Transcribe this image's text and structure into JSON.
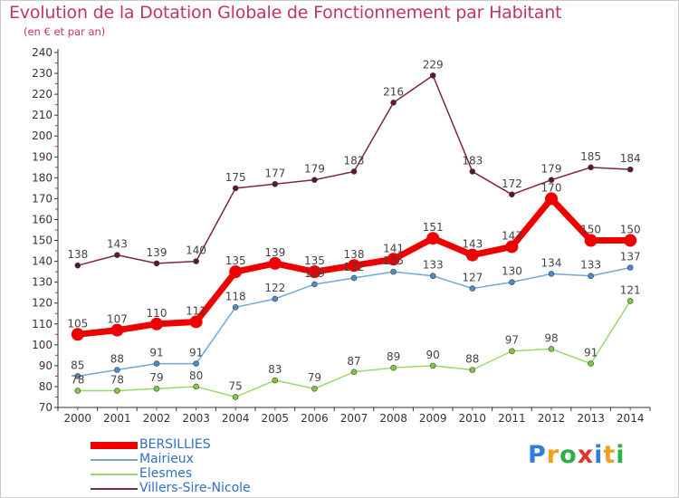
{
  "title": "Evolution de la Dotation Globale de Fonctionnement par Habitant",
  "subtitle": "(en € et par an)",
  "logo": {
    "text": "Proxiti",
    "letters": [
      "P",
      "r",
      "o",
      "x",
      "i",
      "t",
      "i"
    ],
    "colors": [
      "#2f7fd8",
      "#f0a020",
      "#2fae4a",
      "#e0362f",
      "#2f7fd8",
      "#f0a020",
      "#2fae4a"
    ]
  },
  "chart_data": {
    "type": "line",
    "title": "Evolution de la Dotation Globale de Fonctionnement par Habitant",
    "subtitle": "(en € et par an)",
    "categories": [
      "2000",
      "2001",
      "2002",
      "2003",
      "2004",
      "2005",
      "2006",
      "2007",
      "2008",
      "2009",
      "2010",
      "2011",
      "2012",
      "2013",
      "2014"
    ],
    "ylim": [
      70,
      240
    ],
    "yticks": [
      70,
      80,
      90,
      100,
      110,
      120,
      130,
      140,
      150,
      160,
      170,
      180,
      190,
      200,
      210,
      220,
      230,
      240
    ],
    "yticklabels": [
      "70",
      "80",
      "90",
      "100",
      "110",
      "120",
      "130",
      "140",
      "150",
      "160",
      "170",
      "180",
      "190",
      "200",
      "210",
      "220",
      "230",
      "240"
    ],
    "legend_position": "bottom-left",
    "grid": false,
    "series": [
      {
        "name": "Villers-Sire-Nicole",
        "color": "#7a2a35",
        "marker_color": "#5c1a24",
        "values": [
          138,
          143,
          139,
          140,
          175,
          177,
          179,
          183,
          216,
          229,
          183,
          172,
          179,
          185,
          184
        ],
        "labels": [
          "138",
          "143",
          "139",
          "140",
          "175",
          "177",
          "179",
          "183",
          "216",
          "229",
          "183",
          "172",
          "179",
          "185",
          "184"
        ]
      },
      {
        "name": "Elesmes",
        "color": "#9bd86a",
        "marker_color": "#7cc940",
        "values": [
          78,
          78,
          79,
          80,
          75,
          83,
          79,
          87,
          89,
          90,
          88,
          97,
          98,
          91,
          121
        ],
        "labels": [
          "78",
          "78",
          "79",
          "80",
          "75",
          "83",
          "79",
          "87",
          "89",
          "90",
          "88",
          "97",
          "98",
          "91",
          "121"
        ]
      },
      {
        "name": "Mairieux",
        "color": "#6fa8d9",
        "marker_color": "#4a8ccc",
        "values": [
          85,
          88,
          91,
          91,
          118,
          122,
          129,
          132,
          135,
          133,
          127,
          130,
          134,
          133,
          137
        ],
        "labels": [
          "85",
          "88",
          "91",
          "91",
          "118",
          "122",
          "129",
          "132",
          "135",
          "133",
          "127",
          "130",
          "134",
          "133",
          "137"
        ]
      },
      {
        "name": "BERSILLIES",
        "color": "#ee0000",
        "marker_color": "#ee0000",
        "values": [
          105,
          107,
          110,
          111,
          135,
          139,
          135,
          138,
          141,
          151,
          143,
          147,
          170,
          150,
          150
        ],
        "labels": [
          "105",
          "107",
          "110",
          "111",
          "135",
          "139",
          "135",
          "138",
          "141",
          "151",
          "143",
          "147",
          "170",
          "150",
          "150"
        ]
      }
    ],
    "legend": [
      "BERSILLIES",
      "Mairieux",
      "Elesmes",
      "Villers-Sire-Nicole"
    ]
  }
}
